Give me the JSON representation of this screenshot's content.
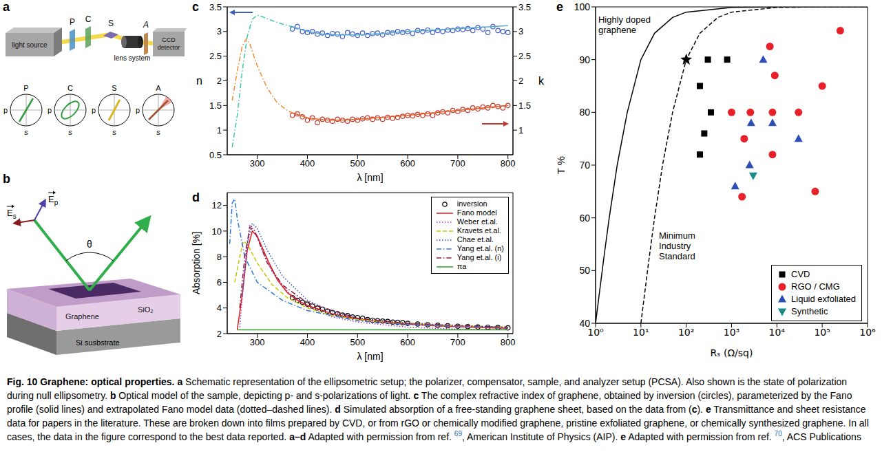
{
  "figure": {
    "panels": {
      "a": {
        "letter": "a",
        "components": {
          "light_source": "light source",
          "polarizer": "P",
          "compensator": "C",
          "sample": "S",
          "lens": "lens system",
          "analyzer": "A",
          "detector": "CCD detector"
        },
        "polarization_states": [
          {
            "label": "P"
          },
          {
            "label": "C"
          },
          {
            "label": "S"
          },
          {
            "label": "A"
          }
        ],
        "axis_p": "p",
        "axis_s": "s"
      },
      "b": {
        "letter": "b",
        "angle": "θ",
        "fields": [
          {
            "base": "E",
            "sub": "p"
          },
          {
            "base": "E",
            "sub": "s"
          }
        ],
        "layers": [
          "Graphene",
          "SiO₂",
          "Si susbstrate"
        ]
      },
      "c": {
        "letter": "c"
      },
      "d": {
        "letter": "d"
      },
      "e": {
        "letter": "e"
      }
    }
  },
  "chart_data": [
    {
      "type": "line",
      "xlabel": "λ [nm]",
      "ylabel": "n",
      "y2label": "k",
      "xlim": [
        240,
        810
      ],
      "xticks": [
        300,
        400,
        500,
        600,
        700,
        800
      ],
      "ylim": [
        0.5,
        3.5
      ],
      "yticks": [
        0.5,
        1,
        1.5,
        2,
        2.5,
        3,
        3.5
      ],
      "y2lim": [
        0.5,
        3.5
      ],
      "y2ticks": [
        1,
        1.5,
        2,
        2.5,
        3,
        3.5
      ],
      "series": [
        {
          "type": "scatter",
          "marker": "open_circle",
          "color": "#3d5fc4",
          "x": [
            370,
            380,
            390,
            400,
            410,
            420,
            430,
            440,
            450,
            460,
            470,
            480,
            490,
            500,
            510,
            520,
            530,
            540,
            550,
            560,
            570,
            580,
            590,
            600,
            610,
            620,
            630,
            640,
            650,
            660,
            670,
            680,
            690,
            700,
            710,
            720,
            730,
            740,
            750,
            760,
            770,
            780,
            790,
            800
          ],
          "values": [
            3.05,
            3.1,
            3.0,
            2.98,
            3.0,
            2.95,
            2.97,
            2.92,
            2.96,
            2.95,
            2.9,
            2.98,
            2.95,
            2.92,
            2.97,
            2.92,
            2.96,
            2.97,
            2.93,
            2.98,
            2.97,
            3.0,
            2.98,
            3.0,
            2.96,
            3.02,
            3.0,
            3.03,
            2.98,
            3.02,
            3.0,
            3.03,
            3.02,
            3.05,
            3.04,
            3.06,
            3.02,
            3.08,
            3.05,
            2.98,
            3.1,
            3.02,
            3.0,
            2.98
          ]
        },
        {
          "type": "line",
          "line_style": "solid",
          "color": "#5aa8d0",
          "x": [
            370,
            400,
            430,
            460,
            500,
            550,
            600,
            650,
            700,
            750,
            800
          ],
          "values": [
            3.1,
            3.0,
            2.95,
            2.93,
            2.93,
            2.96,
            3.0,
            3.03,
            3.06,
            3.09,
            3.12
          ]
        },
        {
          "type": "line",
          "line_style": "dashdot",
          "color": "#3cc8a8",
          "x": [
            250,
            260,
            270,
            280,
            290,
            300,
            310,
            330,
            350,
            370
          ],
          "values": [
            0.65,
            1.3,
            2.2,
            2.9,
            3.25,
            3.33,
            3.3,
            3.22,
            3.15,
            3.1
          ]
        },
        {
          "type": "scatter",
          "marker": "open_circle",
          "color": "#c0392b",
          "axis": "y2",
          "x": [
            370,
            380,
            390,
            400,
            410,
            420,
            430,
            440,
            450,
            460,
            470,
            480,
            490,
            500,
            510,
            520,
            530,
            540,
            550,
            560,
            570,
            580,
            590,
            600,
            610,
            620,
            630,
            640,
            650,
            660,
            670,
            680,
            690,
            700,
            710,
            720,
            730,
            740,
            750,
            760,
            770,
            780,
            790,
            800
          ],
          "values": [
            1.3,
            1.33,
            1.27,
            1.2,
            1.25,
            1.15,
            1.22,
            1.2,
            1.18,
            1.22,
            1.2,
            1.18,
            1.22,
            1.2,
            1.23,
            1.25,
            1.22,
            1.25,
            1.22,
            1.26,
            1.24,
            1.26,
            1.28,
            1.3,
            1.29,
            1.32,
            1.3,
            1.33,
            1.3,
            1.35,
            1.37,
            1.35,
            1.4,
            1.38,
            1.42,
            1.4,
            1.45,
            1.43,
            1.47,
            1.45,
            1.5,
            1.48,
            1.45,
            1.5
          ]
        },
        {
          "type": "line",
          "line_style": "solid",
          "color": "#e8602c",
          "axis": "y2",
          "x": [
            370,
            400,
            430,
            460,
            500,
            550,
            600,
            650,
            700,
            750,
            800
          ],
          "values": [
            1.35,
            1.25,
            1.21,
            1.2,
            1.22,
            1.26,
            1.3,
            1.35,
            1.4,
            1.45,
            1.5
          ]
        },
        {
          "type": "line",
          "line_style": "dashdot",
          "color": "#f08c30",
          "axis": "y2",
          "x": [
            250,
            260,
            270,
            278,
            285,
            300,
            320,
            340,
            360,
            370
          ],
          "values": [
            1.6,
            2.2,
            2.7,
            2.85,
            2.75,
            2.3,
            1.85,
            1.55,
            1.4,
            1.35
          ]
        }
      ]
    },
    {
      "type": "line",
      "xlabel": "λ [nm]",
      "ylabel": "Absorption [%]",
      "xlim": [
        240,
        810
      ],
      "xticks": [
        300,
        400,
        500,
        600,
        700,
        800
      ],
      "ylim": [
        2,
        13
      ],
      "yticks": [
        2,
        4,
        6,
        8,
        10,
        12
      ],
      "legend": "upper right",
      "series": [
        {
          "name": "inversion",
          "type": "scatter",
          "marker": "open_circle",
          "color": "#000000",
          "x": [
            370,
            380,
            390,
            400,
            410,
            420,
            430,
            440,
            450,
            460,
            470,
            480,
            490,
            500,
            510,
            520,
            530,
            540,
            550,
            560,
            570,
            580,
            590,
            600,
            620,
            640,
            660,
            680,
            700,
            720,
            740,
            760,
            780,
            800
          ],
          "values": [
            4.8,
            4.6,
            4.45,
            4.3,
            4.15,
            4.0,
            3.9,
            3.75,
            3.65,
            3.55,
            3.45,
            3.4,
            3.3,
            3.25,
            3.2,
            3.1,
            3.05,
            3.0,
            2.98,
            2.95,
            2.9,
            2.88,
            2.85,
            2.8,
            2.75,
            2.7,
            2.65,
            2.62,
            2.58,
            2.55,
            2.52,
            2.5,
            2.48,
            2.45
          ]
        },
        {
          "name": "Fano model",
          "type": "line",
          "line_style": "solid",
          "color": "#e31a1c",
          "x": [
            260,
            270,
            280,
            290,
            300,
            320,
            340,
            360,
            380,
            400,
            450,
            500,
            550,
            600,
            650,
            700,
            750,
            800
          ],
          "values": [
            2.3,
            5,
            8.5,
            10,
            9.6,
            7.8,
            6.2,
            5.2,
            4.6,
            4.2,
            3.55,
            3.15,
            2.9,
            2.75,
            2.62,
            2.53,
            2.47,
            2.42
          ]
        },
        {
          "name": "Weber et.al.",
          "type": "line",
          "line_style": "dotted",
          "color": "#b03cb0",
          "x": [
            265,
            275,
            285,
            295,
            310,
            330,
            360,
            400,
            450,
            500,
            600,
            700,
            800
          ],
          "values": [
            2.5,
            7,
            10.5,
            10,
            8.5,
            6.8,
            5.3,
            4.1,
            3.3,
            2.9,
            2.5,
            2.35,
            2.3
          ]
        },
        {
          "name": "Kravets et.al.",
          "type": "line",
          "line_style": "dashed",
          "color": "#c8c800",
          "x": [
            255,
            265,
            272,
            280,
            300,
            330,
            360,
            400,
            450,
            500,
            600,
            700,
            800
          ],
          "values": [
            6,
            8,
            9.2,
            9,
            7.5,
            5.8,
            4.8,
            4.0,
            3.4,
            3.1,
            2.8,
            2.6,
            2.5
          ]
        },
        {
          "name": "Chae et.al.",
          "type": "line",
          "line_style": "dotted",
          "color": "#3050c8",
          "x": [
            270,
            280,
            290,
            300,
            320,
            350,
            400,
            450,
            500,
            600,
            700,
            800
          ],
          "values": [
            5,
            9,
            10.6,
            10.2,
            8.5,
            6.5,
            4.6,
            3.7,
            3.2,
            2.8,
            2.6,
            2.5
          ]
        },
        {
          "name": "Yang et.al. (n)",
          "type": "line",
          "line_style": "dashdot",
          "color": "#2a7ae0",
          "x": [
            245,
            250,
            255,
            260,
            275,
            300,
            350,
            400,
            500,
            600,
            800
          ],
          "values": [
            9,
            12.2,
            12.5,
            11,
            8,
            6,
            4.6,
            3.8,
            3.0,
            2.7,
            2.45
          ]
        },
        {
          "name": "Yang et.al. (i)",
          "type": "line",
          "line_style": "dashdot",
          "color": "#8b1a3a",
          "x": [
            265,
            275,
            285,
            295,
            320,
            350,
            400,
            500,
            600,
            800
          ],
          "values": [
            4,
            8,
            10.3,
            10,
            7.5,
            5.8,
            4.4,
            3.2,
            2.8,
            2.5
          ]
        },
        {
          "name": "πa",
          "type": "line",
          "line_style": "solid",
          "color": "#2ca02c",
          "x": [
            260,
            800
          ],
          "values": [
            2.3,
            2.3
          ]
        }
      ]
    },
    {
      "type": "scatter",
      "log": "x",
      "xlabel": "Rₛ (Ω/sq)",
      "ylabel": "T %",
      "xlim": [
        1,
        1000000
      ],
      "xticks": [
        {
          "value": 1,
          "label": "10⁰"
        },
        {
          "value": 10,
          "label": "10¹"
        },
        {
          "value": 100,
          "label": "10²"
        },
        {
          "value": 1000,
          "label": "10³"
        },
        {
          "value": 10000,
          "label": "10⁴"
        },
        {
          "value": 100000,
          "label": "10⁵"
        },
        {
          "value": 1000000,
          "label": "10⁶"
        }
      ],
      "ylim": [
        40,
        100
      ],
      "yticks": [
        40,
        50,
        60,
        70,
        80,
        90,
        100
      ],
      "legend": "lower right",
      "series": [
        {
          "type": "line",
          "line_style": "solid",
          "color": "#000000",
          "x": [
            1,
            1.5,
            2,
            3,
            5,
            10,
            20,
            50,
            100,
            1000,
            10000,
            1000000
          ],
          "values": [
            40,
            52,
            60,
            70,
            80,
            90,
            95,
            98,
            99,
            99.9,
            100,
            100
          ]
        },
        {
          "type": "line",
          "line_style": "dashed",
          "color": "#000000",
          "x": [
            10,
            15,
            20,
            30,
            50,
            100,
            200,
            500,
            1000,
            10000,
            100000,
            1000000
          ],
          "values": [
            40,
            52,
            60,
            70,
            80,
            90,
            95,
            98,
            99,
            99.9,
            100,
            100
          ]
        },
        {
          "name": "CVD",
          "type": "scatter",
          "marker": "square",
          "color": "#000000",
          "x": [
            200,
            200,
            250,
            300,
            350,
            800
          ],
          "values": [
            72,
            85,
            76,
            90,
            80,
            90
          ]
        },
        {
          "name": "RGO / CMG",
          "type": "scatter",
          "marker": "circle",
          "color": "#e8202a",
          "x": [
            1000,
            1700,
            1900,
            2600,
            7000,
            9000,
            8000,
            8000,
            30000,
            70000,
            100000,
            250000
          ],
          "values": [
            80,
            64,
            75,
            80,
            92.5,
            87,
            72,
            80,
            80,
            65,
            85,
            95.5
          ]
        },
        {
          "name": "Liquid exfoliated",
          "type": "scatter",
          "marker": "triangle",
          "color": "#2f4fb8",
          "x": [
            1200,
            2500,
            2700,
            5000,
            8000,
            30000
          ],
          "values": [
            66,
            70,
            78,
            90,
            78,
            75
          ]
        },
        {
          "name": "Synthetic",
          "type": "scatter",
          "marker": "triangle_down",
          "color": "#1a8a8a",
          "x": [
            3000
          ],
          "values": [
            68
          ]
        },
        {
          "type": "scatter",
          "marker": "star",
          "color": "#000000",
          "x": [
            100
          ],
          "values": [
            90
          ]
        }
      ],
      "annotations": [
        {
          "text": "Highly doped graphene",
          "x": 1.15,
          "y": 97
        },
        {
          "text": "Minimum Industry Standard",
          "x": 25,
          "y": 56
        }
      ]
    }
  ],
  "caption": [
    {
      "text": "Fig. 10 Graphene: optical properties. a",
      "bold": true
    },
    {
      "text": " Schematic representation of the ellipsometric setup; the polarizer, compensator, sample, and analyzer setup (PCSA). Also shown is the state of polarization during null ellipsometry. "
    },
    {
      "text": "b",
      "bold": true
    },
    {
      "text": " Optical model of the sample, depicting p- and s-polarizations of light. "
    },
    {
      "text": "c",
      "bold": true
    },
    {
      "text": " The complex refractive index of graphene, obtained by inversion (circles), parameterized by the Fano profile (solid lines) and extrapolated Fano model data (dotted–dashed lines). "
    },
    {
      "text": "d",
      "bold": true
    },
    {
      "text": " Simulated absorption of a free-standing graphene sheet, based on the data from ("
    },
    {
      "text": "c",
      "bold": true
    },
    {
      "text": "). "
    },
    {
      "text": "e",
      "bold": true
    },
    {
      "text": " Transmittance and sheet resistance data for papers in the literature. These are broken down into films prepared by CVD, or from rGO or chemically modified graphene, pristine exfoliated graphene, or chemically synthesized graphene. In all cases, the data in the figure correspond to the best data reported. "
    },
    {
      "text": "a–d",
      "bold": true
    },
    {
      "text": " Adapted with permission from ref. "
    },
    {
      "text": "69",
      "sup": true
    },
    {
      "text": ", American Institute of Physics (AIP). "
    },
    {
      "text": "e",
      "bold": true
    },
    {
      "text": " Adapted with permission from ref. "
    },
    {
      "text": "70",
      "sup": true
    },
    {
      "text": ", ACS Publications"
    }
  ]
}
